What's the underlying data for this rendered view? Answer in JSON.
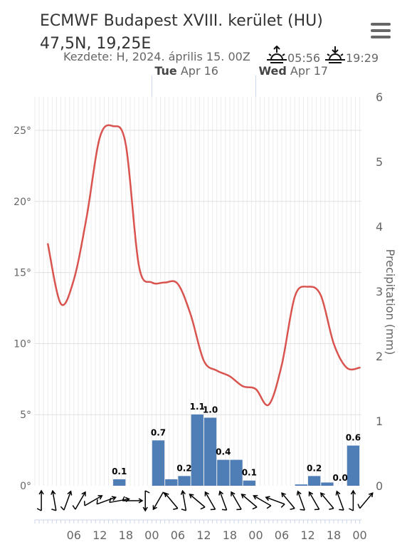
{
  "header": {
    "title_line1": "ECMWF Budapest XVIII. kerület (HU)",
    "title_line2": "47,5N, 19,25E",
    "subtitle": "Kezdete: H, 2024. április 15. 00Z",
    "sunrise": "05:56",
    "sunset": "19:29",
    "menu_icon": "hamburger-menu-icon"
  },
  "chart_data": {
    "type": "line+bar",
    "title": "",
    "top_axis": [
      {
        "day": "Tue",
        "date": "Apr 16"
      },
      {
        "day": "Wed",
        "date": "Apr 17"
      }
    ],
    "x_tick_labels": [
      "06",
      "12",
      "18",
      "00",
      "06",
      "12",
      "18",
      "00",
      "06",
      "12",
      "18",
      "00"
    ],
    "y_left": {
      "ticks": [
        "0°",
        "5°",
        "10°",
        "15°",
        "20°",
        "25°"
      ],
      "range": [
        0,
        26.5
      ]
    },
    "y_right": {
      "label": "Precipitation (mm)",
      "ticks": [
        "0",
        "1",
        "2",
        "3",
        "4",
        "5",
        "6"
      ],
      "range": [
        0,
        6
      ]
    },
    "temperature": {
      "color": "#d9534f",
      "hours": [
        0,
        3,
        6,
        9,
        12,
        15,
        18,
        21,
        24,
        27,
        30,
        33,
        36,
        39,
        42,
        45,
        48,
        51,
        54,
        57,
        60,
        63,
        66,
        69,
        72
      ],
      "values": [
        17.0,
        12.8,
        14.5,
        19.0,
        24.5,
        25.3,
        24.0,
        15.5,
        14.3,
        14.3,
        14.2,
        12.0,
        8.8,
        8.1,
        7.7,
        7.0,
        6.8,
        5.7,
        8.5,
        13.3,
        14.0,
        13.4,
        10.0,
        8.3,
        8.3
      ]
    },
    "precipitation": {
      "color": "#4f7db5",
      "bars": [
        {
          "start": 15,
          "end": 18,
          "value": 0.1,
          "label": "0.1"
        },
        {
          "start": 24,
          "end": 27,
          "value": 0.7,
          "label": "0.7"
        },
        {
          "start": 27,
          "end": 30,
          "value": 0.1,
          "label": ""
        },
        {
          "start": 30,
          "end": 33,
          "value": 0.15,
          "label": "0.2"
        },
        {
          "start": 33,
          "end": 36,
          "value": 1.1,
          "label": "1.1"
        },
        {
          "start": 36,
          "end": 39,
          "value": 1.05,
          "label": "1.0"
        },
        {
          "start": 39,
          "end": 42,
          "value": 0.4,
          "label": "0.4"
        },
        {
          "start": 42,
          "end": 45,
          "value": 0.4,
          "label": ""
        },
        {
          "start": 45,
          "end": 48,
          "value": 0.08,
          "label": "0.1"
        },
        {
          "start": 57,
          "end": 60,
          "value": 0.02,
          "label": ""
        },
        {
          "start": 60,
          "end": 63,
          "value": 0.15,
          "label": "0.2"
        },
        {
          "start": 63,
          "end": 66,
          "value": 0.05,
          "label": ""
        },
        {
          "start": 66,
          "end": 69,
          "value": 0.0,
          "label": "0.0"
        },
        {
          "start": 69,
          "end": 72,
          "value": 0.62,
          "label": "0.6"
        }
      ]
    },
    "wind_direction_deg": [
      180,
      170,
      200,
      210,
      240,
      250,
      260,
      270,
      0,
      30,
      140,
      170,
      130,
      150,
      160,
      150,
      130,
      120,
      110,
      140,
      160,
      150,
      140,
      160,
      180,
      220
    ]
  }
}
